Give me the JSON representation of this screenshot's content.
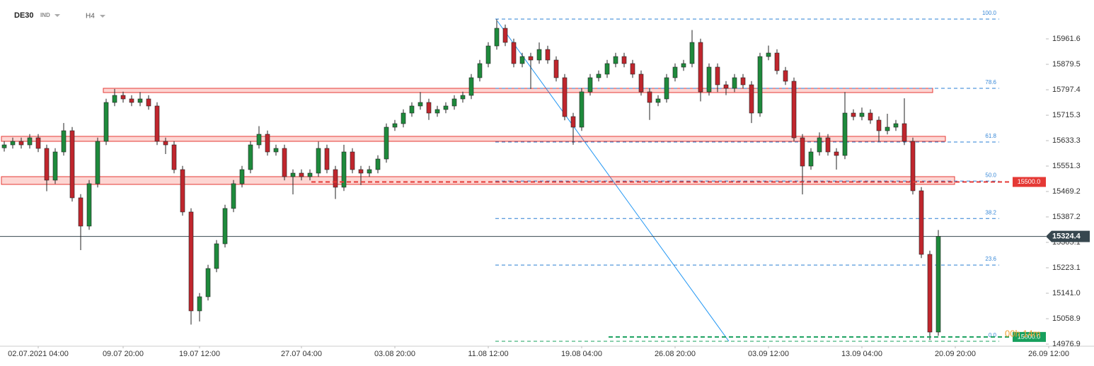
{
  "chart_data": {
    "type": "candlestick",
    "symbol": "DE30",
    "market": "IND",
    "timeframe": "H4",
    "categories": [
      null,
      null,
      null,
      null,
      "02.07.2021 04:00",
      null,
      null,
      null,
      null,
      null,
      null,
      null,
      null,
      null,
      "09.07 20:00",
      null,
      null,
      null,
      null,
      null,
      null,
      null,
      null,
      "19.07 12:00",
      null,
      null,
      null,
      null,
      null,
      null,
      null,
      null,
      null,
      null,
      null,
      "27.07 04:00",
      null,
      null,
      null,
      null,
      null,
      null,
      null,
      null,
      null,
      null,
      "03.08 20:00",
      null,
      null,
      null,
      null,
      null,
      null,
      null,
      null,
      null,
      null,
      "11.08 12:00",
      null,
      null,
      null,
      null,
      null,
      null,
      null,
      null,
      null,
      null,
      "19.08 04:00",
      null,
      null,
      null,
      null,
      null,
      null,
      null,
      null,
      null,
      null,
      "26.08 20:00",
      null,
      null,
      null,
      null,
      null,
      null,
      null,
      null,
      null,
      null,
      "03.09 12:00",
      null,
      null,
      null,
      null,
      null,
      null,
      null,
      null,
      null,
      null,
      "13.09 04:00",
      null,
      null,
      null,
      null,
      null,
      null,
      null,
      null,
      null,
      null,
      "20.09 20:00",
      null,
      null,
      null,
      null,
      null,
      null,
      null,
      null,
      null,
      null,
      "26.09 12:00"
    ],
    "candles": [
      [
        15610.0,
        15631.7,
        15598.0,
        15619.7
      ],
      [
        15619.7,
        15643.1,
        15607.7,
        15631.1
      ],
      [
        15631.1,
        15643.1,
        15607.7,
        15619.7
      ],
      [
        15619.7,
        15654.5,
        15607.7,
        15642.5
      ],
      [
        15642.5,
        15654.5,
        15596.3,
        15608.3
      ],
      [
        15608.3,
        15620.3,
        15470.0,
        15505.8
      ],
      [
        15505.8,
        15608.9,
        15493.8,
        15596.9
      ],
      [
        15596.9,
        15690.0,
        15584.9,
        15665.3
      ],
      [
        15665.3,
        15677.3,
        15436.8,
        15448.8
      ],
      [
        15448.8,
        15460.8,
        15280.0,
        15357.6
      ],
      [
        15357.6,
        15506.4,
        15345.6,
        15494.4
      ],
      [
        15494.4,
        15643.1,
        15482.4,
        15631.1
      ],
      [
        15631.1,
        15768.5,
        15619.1,
        15756.5
      ],
      [
        15756.5,
        15800.0,
        15744.5,
        15779.3
      ],
      [
        15779.3,
        15791.3,
        15755.9,
        15767.9
      ],
      [
        15767.9,
        15779.9,
        15744.5,
        15756.5
      ],
      [
        15756.5,
        15790.0,
        15744.5,
        15767.9
      ],
      [
        15767.9,
        15779.9,
        15733.1,
        15745.1
      ],
      [
        15745.1,
        15757.1,
        15619.1,
        15631.1
      ],
      [
        15631.1,
        15643.1,
        15590.0,
        15619.7
      ],
      [
        15619.7,
        15631.7,
        15527.9,
        15539.9
      ],
      [
        15539.9,
        15551.9,
        15391.2,
        15403.2
      ],
      [
        15403.2,
        15415.2,
        15040.0,
        15084.1
      ],
      [
        15084.1,
        15141.7,
        15050.0,
        15129.7
      ],
      [
        15129.7,
        15232.8,
        15117.7,
        15220.8
      ],
      [
        15220.8,
        15312.6,
        15208.8,
        15300.6
      ],
      [
        15300.6,
        15426.6,
        15288.6,
        15414.6
      ],
      [
        15414.6,
        15506.4,
        15402.6,
        15494.4
      ],
      [
        15494.4,
        15551.9,
        15482.4,
        15539.9
      ],
      [
        15539.9,
        15631.7,
        15527.9,
        15619.7
      ],
      [
        15619.7,
        15680.0,
        15607.7,
        15653.9
      ],
      [
        15653.9,
        15665.9,
        15584.9,
        15596.9
      ],
      [
        15596.9,
        15620.3,
        15584.9,
        15608.3
      ],
      [
        15608.3,
        15620.3,
        15505.1,
        15517.1
      ],
      [
        15517.1,
        15540.5,
        15460.0,
        15528.5
      ],
      [
        15528.5,
        15540.5,
        15505.1,
        15517.1
      ],
      [
        15517.1,
        15540.5,
        15505.1,
        15528.5
      ],
      [
        15528.5,
        15630.0,
        15516.5,
        15608.3
      ],
      [
        15608.3,
        15620.3,
        15527.9,
        15539.9
      ],
      [
        15539.9,
        15551.9,
        15445.0,
        15483.0
      ],
      [
        15483.0,
        15620.0,
        15471.0,
        15596.9
      ],
      [
        15596.9,
        15608.9,
        15527.9,
        15539.9
      ],
      [
        15539.9,
        15551.9,
        15490.0,
        15528.5
      ],
      [
        15528.5,
        15551.9,
        15516.5,
        15539.9
      ],
      [
        15539.9,
        15586.1,
        15527.9,
        15574.1
      ],
      [
        15574.1,
        15688.7,
        15562.1,
        15676.7
      ],
      [
        15676.7,
        15700.1,
        15664.7,
        15688.1
      ],
      [
        15688.1,
        15734.3,
        15676.1,
        15722.3
      ],
      [
        15722.3,
        15757.1,
        15710.3,
        15745.1
      ],
      [
        15745.1,
        15790.0,
        15733.1,
        15756.5
      ],
      [
        15756.5,
        15768.5,
        15700.0,
        15722.3
      ],
      [
        15722.3,
        15745.7,
        15710.3,
        15733.7
      ],
      [
        15733.7,
        15757.1,
        15721.7,
        15745.1
      ],
      [
        15745.1,
        15779.9,
        15733.1,
        15767.9
      ],
      [
        15767.9,
        15791.3,
        15755.9,
        15779.3
      ],
      [
        15779.3,
        15848.3,
        15767.3,
        15836.3
      ],
      [
        15836.3,
        15893.9,
        15824.3,
        15881.9
      ],
      [
        15881.9,
        15950.8,
        15869.9,
        15938.8
      ],
      [
        15938.8,
        16025.0,
        15926.8,
        15995.8
      ],
      [
        15995.8,
        16007.8,
        15938.2,
        15950.2
      ],
      [
        15950.2,
        15962.2,
        15869.9,
        15881.9
      ],
      [
        15881.9,
        15916.6,
        15869.9,
        15904.6
      ],
      [
        15904.6,
        15916.6,
        15800.0,
        15893.3
      ],
      [
        15893.3,
        15950.0,
        15881.3,
        15927.4
      ],
      [
        15927.4,
        15939.4,
        15881.3,
        15893.3
      ],
      [
        15893.3,
        15905.3,
        15824.3,
        15836.3
      ],
      [
        15836.3,
        15848.3,
        15698.9,
        15710.9
      ],
      [
        15710.9,
        15722.9,
        15620.0,
        15676.7
      ],
      [
        15676.7,
        15802.7,
        15664.7,
        15790.7
      ],
      [
        15790.7,
        15848.3,
        15778.7,
        15836.3
      ],
      [
        15836.3,
        15859.7,
        15824.3,
        15847.7
      ],
      [
        15847.7,
        15893.9,
        15835.7,
        15881.9
      ],
      [
        15881.9,
        15916.6,
        15869.9,
        15904.6
      ],
      [
        15904.6,
        15916.6,
        15869.9,
        15881.9
      ],
      [
        15881.9,
        15893.9,
        15835.7,
        15847.7
      ],
      [
        15847.7,
        15859.7,
        15778.7,
        15790.7
      ],
      [
        15790.7,
        15802.7,
        15700.0,
        15756.5
      ],
      [
        15756.5,
        15779.9,
        15744.5,
        15767.9
      ],
      [
        15767.9,
        15848.3,
        15755.9,
        15836.3
      ],
      [
        15836.3,
        15882.5,
        15824.3,
        15870.5
      ],
      [
        15870.5,
        15893.9,
        15858.5,
        15881.9
      ],
      [
        15881.9,
        15990.0,
        15869.9,
        15950.2
      ],
      [
        15950.2,
        15962.2,
        15760.0,
        15790.7
      ],
      [
        15790.7,
        15882.5,
        15778.7,
        15870.5
      ],
      [
        15870.5,
        15882.5,
        15790.0,
        15813.5
      ],
      [
        15813.5,
        15825.5,
        15780.0,
        15802.1
      ],
      [
        15802.1,
        15848.3,
        15790.1,
        15836.3
      ],
      [
        15836.3,
        15848.3,
        15801.5,
        15813.5
      ],
      [
        15813.5,
        15825.5,
        15690.0,
        15722.3
      ],
      [
        15722.3,
        15916.6,
        15710.3,
        15904.6
      ],
      [
        15904.6,
        15940.0,
        15892.6,
        15916.0
      ],
      [
        15916.0,
        15928.0,
        15847.1,
        15859.1
      ],
      [
        15859.1,
        15871.1,
        15812.9,
        15824.9
      ],
      [
        15824.9,
        15836.9,
        15630.5,
        15642.5
      ],
      [
        15642.5,
        15654.5,
        15460.0,
        15551.3
      ],
      [
        15551.3,
        15608.9,
        15539.3,
        15596.9
      ],
      [
        15596.9,
        15660.0,
        15584.9,
        15642.5
      ],
      [
        15642.5,
        15654.5,
        15584.9,
        15596.9
      ],
      [
        15596.9,
        15608.9,
        15540.0,
        15585.5
      ],
      [
        15585.5,
        15790.0,
        15573.5,
        15722.3
      ],
      [
        15722.3,
        15734.3,
        15698.9,
        15710.9
      ],
      [
        15710.9,
        15740.0,
        15698.9,
        15722.3
      ],
      [
        15722.3,
        15734.3,
        15687.5,
        15699.5
      ],
      [
        15699.5,
        15711.5,
        15630.0,
        15665.3
      ],
      [
        15665.3,
        15720.0,
        15653.3,
        15676.7
      ],
      [
        15676.7,
        15700.1,
        15664.7,
        15688.1
      ],
      [
        15688.1,
        15770.0,
        15619.1,
        15631.1
      ],
      [
        15631.1,
        15643.1,
        15459.6,
        15471.6
      ],
      [
        15471.6,
        15483.6,
        15254.4,
        15266.4
      ],
      [
        15266.4,
        15278.4,
        14990.0,
        15015.7
      ],
      [
        15015.7,
        15345.0,
        15003.7,
        15324.4
      ],
      null,
      null,
      null,
      null,
      null,
      null,
      null,
      null,
      null,
      null,
      null,
      null,
      null
    ],
    "up_color": "#1e8a3c",
    "down_color": "#c0262d",
    "ylim": [
      14970.1,
      16087
    ],
    "yticks": [
      15961.6,
      15879.5,
      15797.4,
      15715.3,
      15633.3,
      15551.3,
      15469.2,
      15387.2,
      15305.1,
      15223.1,
      {
        "value": 15141,
        "label": "15141.0"
      },
      15058.9,
      14976.9
    ],
    "last_price": 15324.4,
    "levels": [
      {
        "value": 15500,
        "label": "15500.0",
        "color": "#e53935"
      },
      {
        "value": 15000,
        "label": "15000.0",
        "color": "#17a05d"
      }
    ],
    "fibonacci": [
      {
        "label": "100.0",
        "price": 16025.4
      },
      {
        "label": "78.6",
        "price": 15802.0
      },
      {
        "label": "61.8",
        "price": 15628.8
      },
      {
        "label": "50.0",
        "price": 15503.0
      },
      {
        "label": "38.2",
        "price": 15382.0
      },
      {
        "label": "23.6",
        "price": 15232.0
      },
      {
        "label": "0.0",
        "price": 14986.0
      }
    ],
    "zones": [
      {
        "low": 15788.4,
        "high": 15802.1
      },
      {
        "low": 15631.1,
        "high": 15647.1
      },
      {
        "low": 15492.1,
        "high": 15517.1
      }
    ],
    "countdown": "00h 14m"
  }
}
